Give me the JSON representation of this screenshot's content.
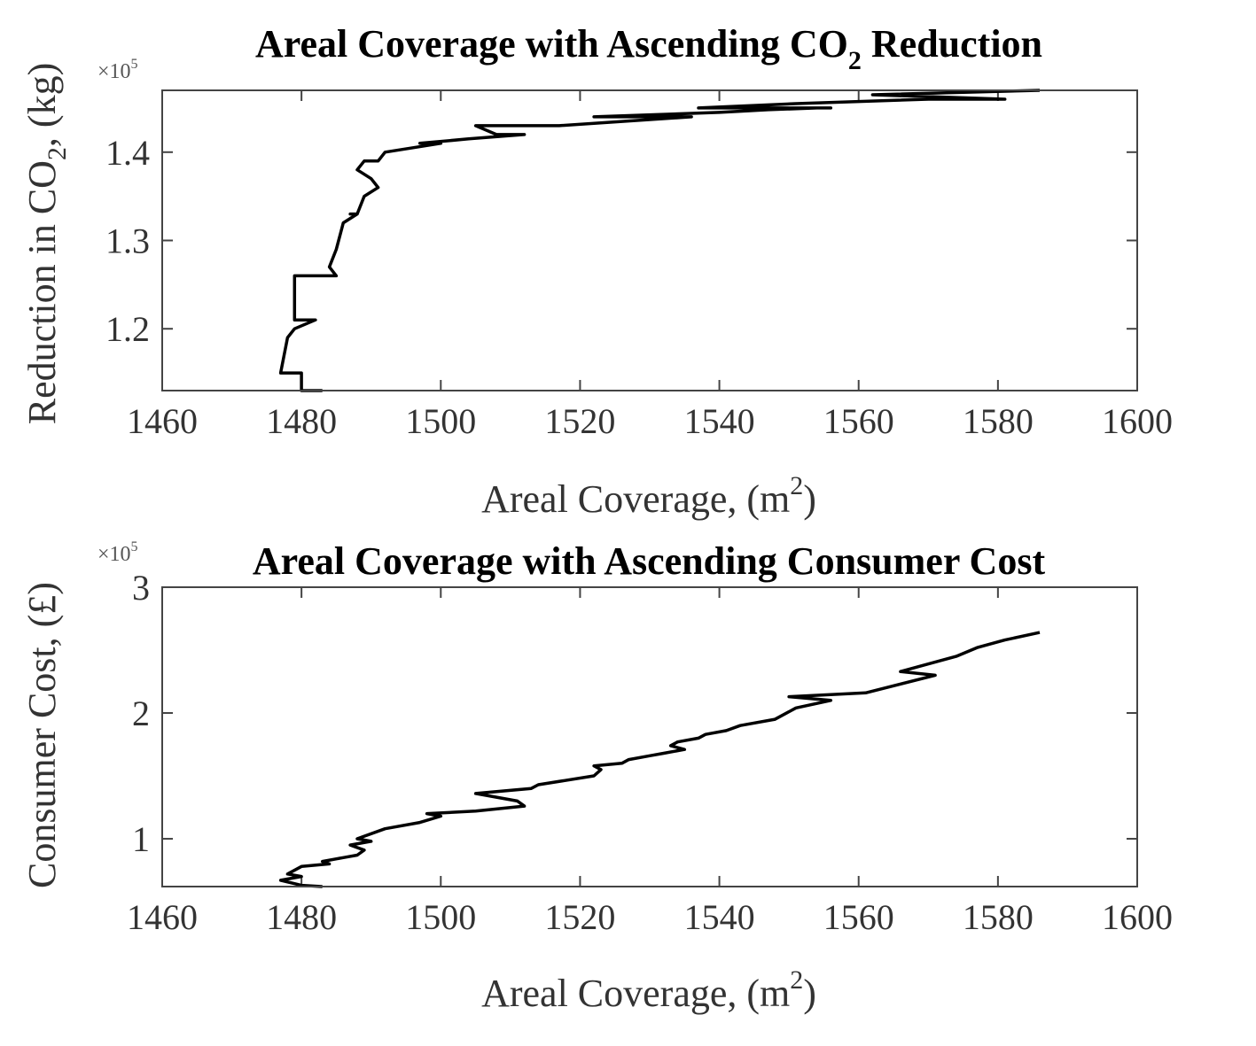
{
  "chart_data": [
    {
      "type": "line",
      "title": "Areal Coverage with Ascending CO",
      "title_sub": "2",
      "title_tail": " Reduction",
      "xlabel": "Areal Coverage, (m",
      "xlabel_sup": "2",
      "xlabel_tail": ")",
      "ylabel": "Reduction in CO",
      "ylabel_sub": "2",
      "ylabel_tail": ", (kg)",
      "y_exponent_base": "×10",
      "y_exponent_power": "5",
      "xlim": [
        1460,
        1600
      ],
      "ylim": [
        1.13,
        1.47
      ],
      "x_ticks": [
        1460,
        1480,
        1500,
        1520,
        1540,
        1560,
        1580,
        1600
      ],
      "x_tick_labels": [
        "1460",
        "1480",
        "1500",
        "1520",
        "1540",
        "1560",
        "1580",
        "1600"
      ],
      "y_ticks": [
        1.2,
        1.3,
        1.4
      ],
      "y_tick_labels": [
        "1.2",
        "1.3",
        "1.4"
      ],
      "grid": false,
      "series": [
        {
          "color": "#000000",
          "x": [
            1483,
            1480,
            1480,
            1477,
            1478,
            1479,
            1482,
            1479,
            1479,
            1479,
            1485,
            1484,
            1484,
            1485,
            1486,
            1486,
            1488,
            1487,
            1488,
            1489,
            1491,
            1490,
            1488,
            1488,
            1489,
            1491,
            1492,
            1496,
            1500,
            1497,
            1504,
            1512,
            1508,
            1505,
            1517,
            1536,
            1522,
            1540,
            1547,
            1554,
            1556,
            1537,
            1551,
            1570,
            1581,
            1562,
            1586
          ],
          "y": [
            1.13,
            1.13,
            1.15,
            1.15,
            1.19,
            1.2,
            1.21,
            1.21,
            1.26,
            1.26,
            1.26,
            1.27,
            1.27,
            1.29,
            1.32,
            1.32,
            1.33,
            1.33,
            1.33,
            1.35,
            1.36,
            1.37,
            1.38,
            1.38,
            1.39,
            1.39,
            1.4,
            1.405,
            1.41,
            1.41,
            1.415,
            1.42,
            1.42,
            1.43,
            1.43,
            1.44,
            1.44,
            1.445,
            1.448,
            1.45,
            1.45,
            1.45,
            1.455,
            1.46,
            1.46,
            1.465,
            1.47
          ]
        }
      ]
    },
    {
      "type": "line",
      "title": "Areal Coverage with Ascending Consumer Cost",
      "xlabel": "Areal Coverage, (m",
      "xlabel_sup": "2",
      "xlabel_tail": ")",
      "ylabel": "Consumer Cost, (£)",
      "y_exponent_base": "×10",
      "y_exponent_power": "5",
      "xlim": [
        1460,
        1600
      ],
      "ylim": [
        0.62,
        3.0
      ],
      "x_ticks": [
        1460,
        1480,
        1500,
        1520,
        1540,
        1560,
        1580,
        1600
      ],
      "x_tick_labels": [
        "1460",
        "1480",
        "1500",
        "1520",
        "1540",
        "1560",
        "1580",
        "1600"
      ],
      "y_ticks": [
        1,
        2,
        3
      ],
      "y_tick_labels": [
        "1",
        "2",
        "3"
      ],
      "grid": false,
      "series": [
        {
          "color": "#000000",
          "x": [
            1483,
            1480,
            1477,
            1480,
            1478,
            1480,
            1484,
            1483,
            1486,
            1488,
            1489,
            1487,
            1490,
            1488,
            1492,
            1497,
            1500,
            1498,
            1505,
            1512,
            1511,
            1505,
            1513,
            1514,
            1522,
            1523,
            1522,
            1526,
            1527,
            1530,
            1532,
            1535,
            1533,
            1534,
            1537,
            1538,
            1541,
            1543,
            1548,
            1551,
            1556,
            1550,
            1561,
            1571,
            1566,
            1574,
            1577,
            1581,
            1586
          ],
          "y": [
            0.62,
            0.63,
            0.67,
            0.7,
            0.72,
            0.78,
            0.8,
            0.82,
            0.85,
            0.87,
            0.91,
            0.95,
            0.98,
            1.0,
            1.08,
            1.13,
            1.18,
            1.2,
            1.22,
            1.26,
            1.3,
            1.36,
            1.4,
            1.43,
            1.5,
            1.55,
            1.58,
            1.6,
            1.63,
            1.66,
            1.68,
            1.71,
            1.74,
            1.77,
            1.8,
            1.83,
            1.86,
            1.9,
            1.95,
            2.04,
            2.1,
            2.13,
            2.16,
            2.3,
            2.33,
            2.45,
            2.52,
            2.58,
            2.64
          ]
        }
      ]
    }
  ]
}
